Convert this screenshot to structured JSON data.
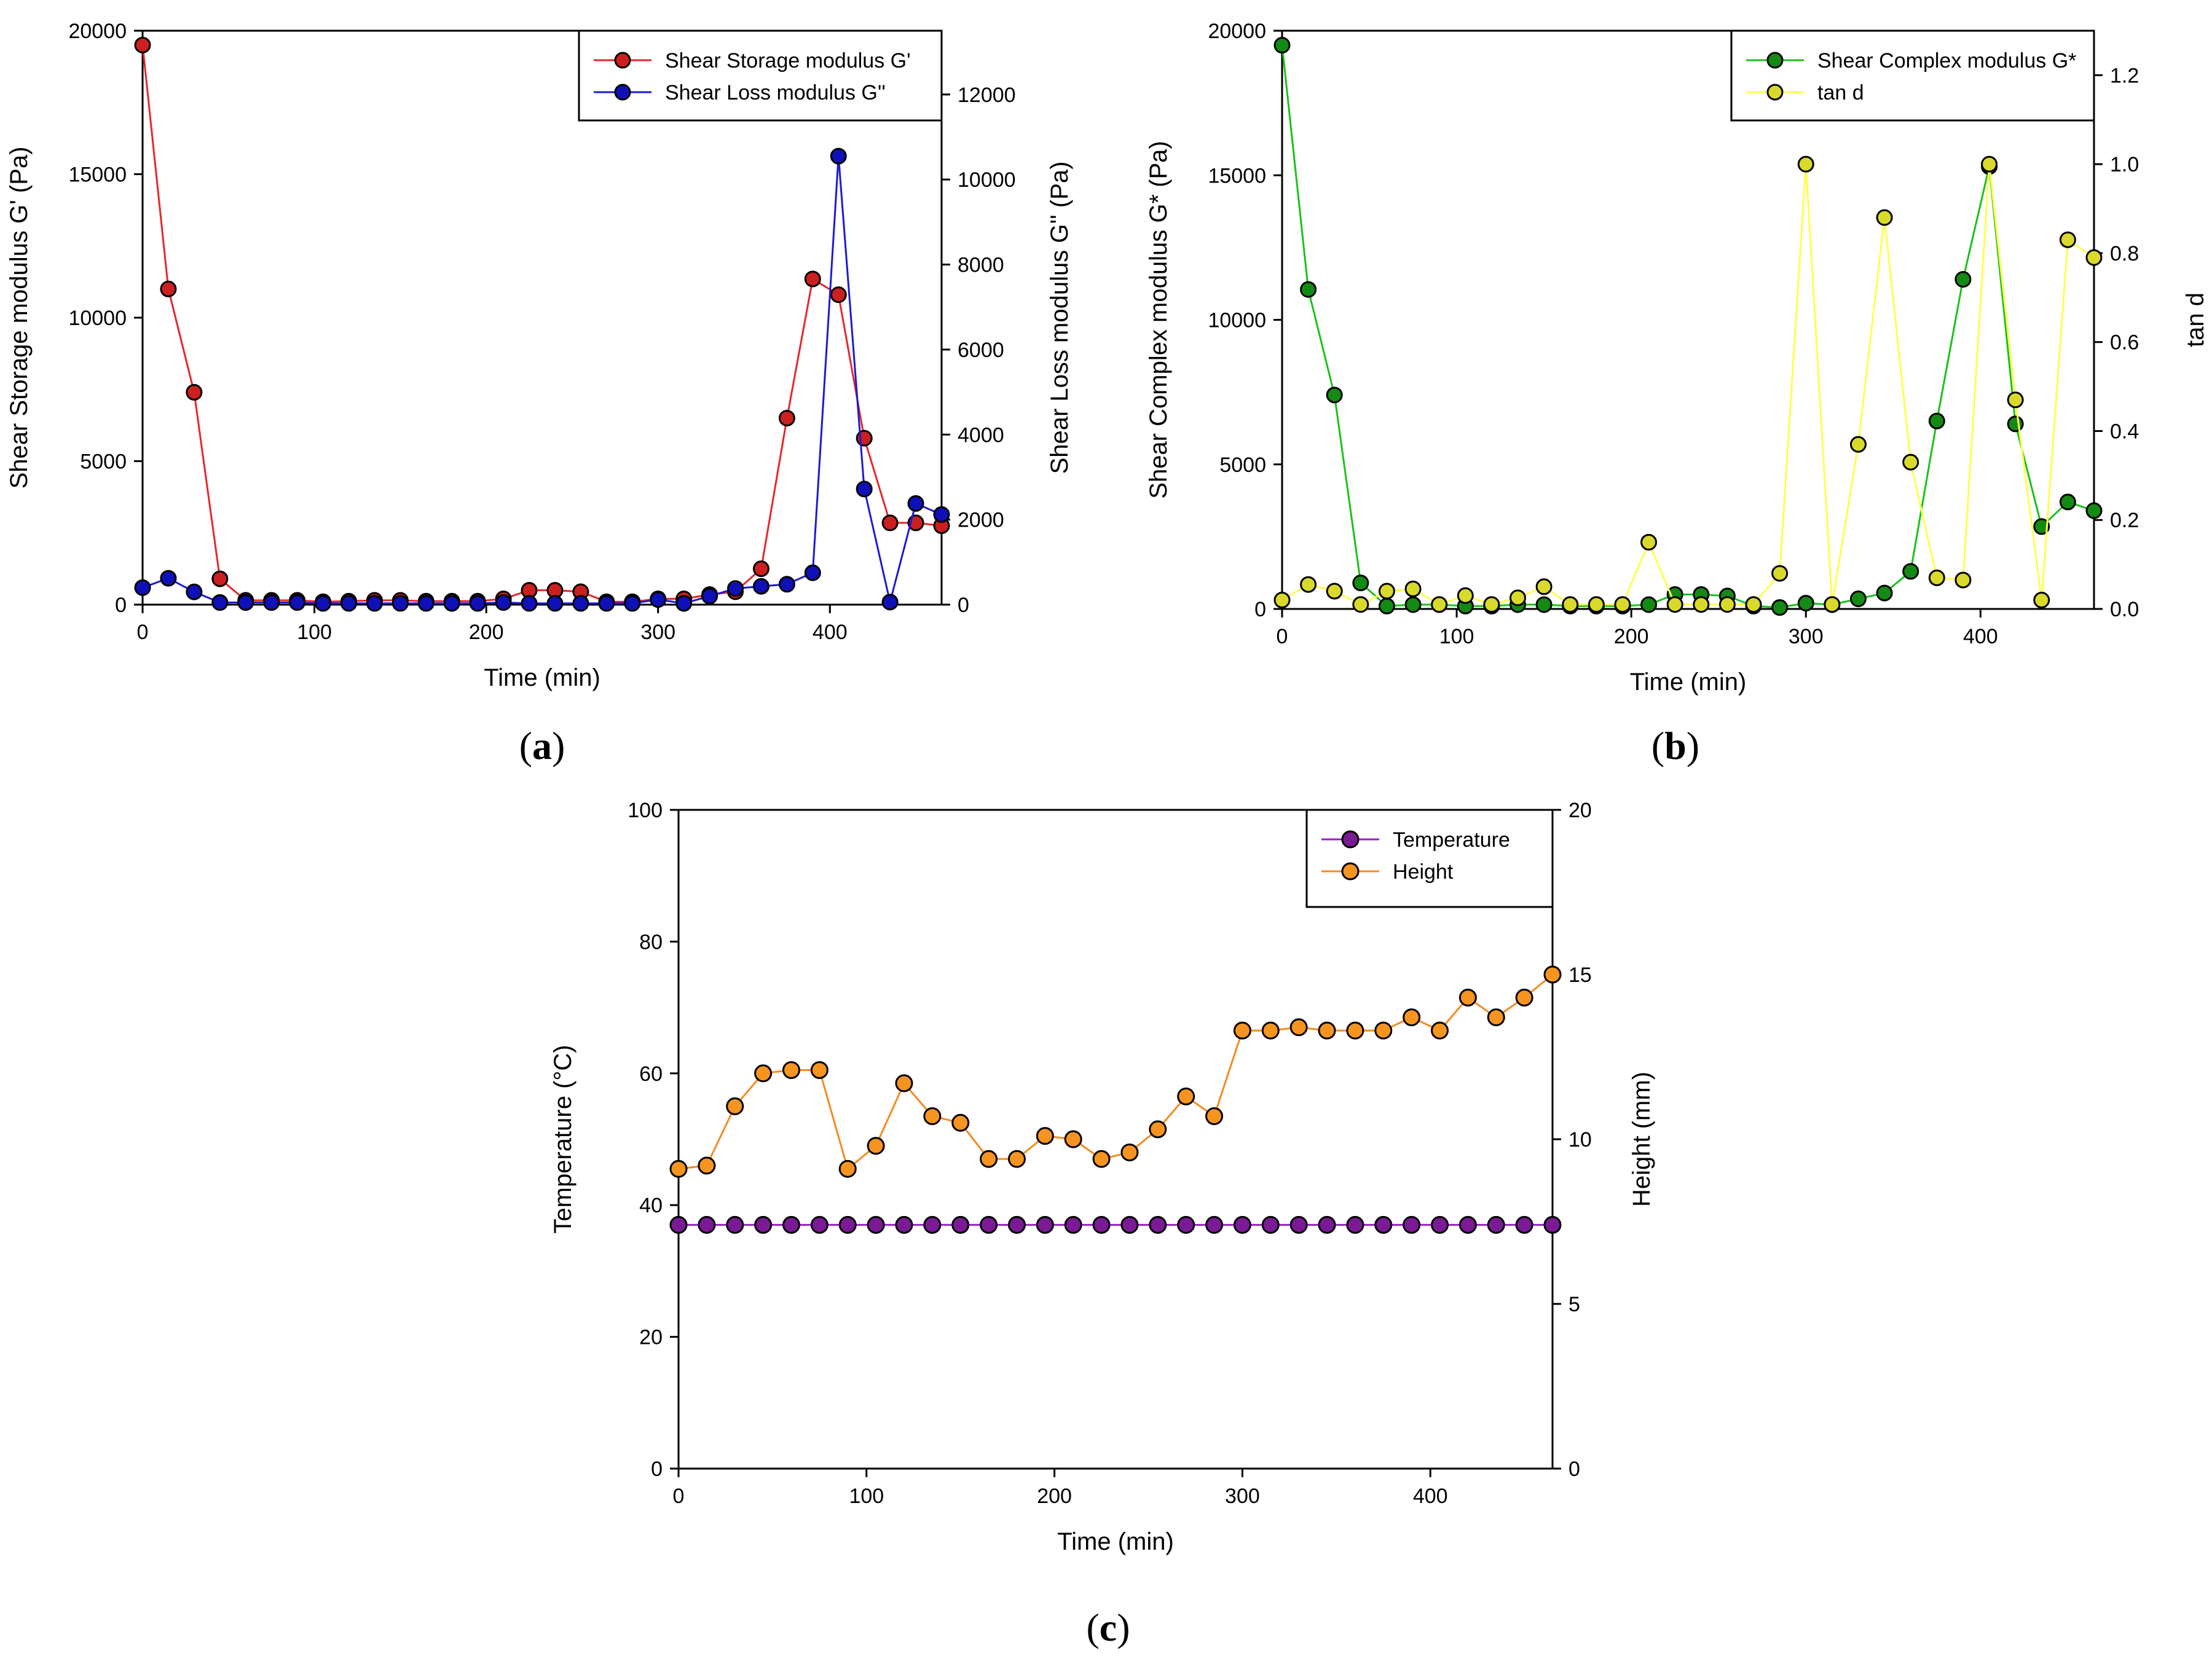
{
  "chart_data": [
    {
      "id": "a",
      "type": "line",
      "panel_label": "a",
      "xlabel": "Time (min)",
      "ylabel": "Shear Storage modulus G' (Pa)",
      "y2label": "Shear Loss modulus G'' (Pa)",
      "xlim": [
        0,
        465
      ],
      "ylim": [
        0,
        20000
      ],
      "y2lim": [
        0,
        13500
      ],
      "xticks": [
        0,
        100,
        200,
        300,
        400
      ],
      "yticks": [
        0,
        5000,
        10000,
        15000,
        20000
      ],
      "y2ticks": [
        0,
        2000,
        4000,
        6000,
        8000,
        10000,
        12000
      ],
      "legend_position": "top-right",
      "series": [
        {
          "name": "Shear Storage modulus G'",
          "axis": "y",
          "line_color": "#e8262b",
          "marker_color": "#cc1f1f",
          "x": [
            0,
            15,
            30,
            45,
            60,
            75,
            90,
            105,
            120,
            135,
            150,
            165,
            180,
            195,
            210,
            225,
            240,
            255,
            270,
            285,
            300,
            315,
            330,
            345,
            360,
            375,
            390,
            405,
            420,
            435,
            450,
            465
          ],
          "values": [
            19500,
            11000,
            7400,
            900,
            150,
            150,
            150,
            100,
            120,
            150,
            150,
            120,
            120,
            120,
            200,
            500,
            500,
            450,
            100,
            100,
            200,
            200,
            350,
            450,
            1250,
            6500,
            11350,
            10800,
            5800,
            2850,
            2850,
            2750
          ]
        },
        {
          "name": "Shear Loss modulus G''",
          "axis": "y2",
          "line_color": "#1a1ad6",
          "marker_color": "#1010b8",
          "x": [
            0,
            15,
            30,
            45,
            60,
            75,
            90,
            105,
            120,
            135,
            150,
            165,
            180,
            195,
            210,
            225,
            240,
            255,
            270,
            285,
            300,
            315,
            330,
            345,
            360,
            375,
            390,
            405,
            420,
            435,
            450,
            465
          ],
          "values": [
            400,
            620,
            300,
            50,
            50,
            50,
            50,
            30,
            30,
            30,
            30,
            30,
            30,
            30,
            50,
            30,
            30,
            30,
            30,
            30,
            120,
            30,
            200,
            380,
            430,
            480,
            750,
            10550,
            2720,
            60,
            2380,
            2120
          ]
        }
      ]
    },
    {
      "id": "b",
      "type": "line",
      "panel_label": "b",
      "xlabel": "Time (min)",
      "ylabel": "Shear Complex modulus G* (Pa)",
      "y2label": "tan d",
      "xlim": [
        0,
        465
      ],
      "ylim": [
        0,
        20000
      ],
      "y2lim": [
        0,
        1.3
      ],
      "xticks": [
        0,
        100,
        200,
        300,
        400
      ],
      "yticks": [
        0,
        5000,
        10000,
        15000,
        20000
      ],
      "y2ticks": [
        0.0,
        0.2,
        0.4,
        0.6,
        0.8,
        1.0,
        1.2
      ],
      "y2tick_labels": [
        "0.0",
        "0.2",
        "0.4",
        "0.6",
        "0.8",
        "1.0",
        "1.2"
      ],
      "legend_position": "top-right",
      "series": [
        {
          "name": "Shear Complex modulus G*",
          "axis": "y",
          "line_color": "#19c219",
          "marker_color": "#138a13",
          "x": [
            0,
            15,
            30,
            45,
            60,
            75,
            90,
            105,
            120,
            135,
            150,
            165,
            180,
            195,
            210,
            225,
            240,
            255,
            270,
            285,
            300,
            315,
            330,
            345,
            360,
            375,
            390,
            405,
            420,
            435,
            450,
            465
          ],
          "values": [
            19500,
            11050,
            7400,
            900,
            100,
            150,
            150,
            100,
            100,
            150,
            150,
            100,
            100,
            100,
            150,
            500,
            500,
            450,
            100,
            50,
            200,
            150,
            350,
            550,
            1300,
            6500,
            11400,
            15300,
            6400,
            2850,
            3700,
            3400
          ]
        },
        {
          "name": "tan d",
          "axis": "y2",
          "line_color": "#ffff4d",
          "marker_color": "#d9d92b",
          "x": [
            0,
            15,
            30,
            45,
            60,
            75,
            90,
            105,
            120,
            135,
            150,
            165,
            180,
            195,
            210,
            225,
            240,
            255,
            270,
            285,
            300,
            315,
            330,
            345,
            360,
            375,
            390,
            405,
            420,
            435,
            450,
            465
          ],
          "values": [
            0.02,
            0.055,
            0.04,
            0.01,
            0.04,
            0.045,
            0.01,
            0.03,
            0.01,
            0.025,
            0.05,
            0.01,
            0.01,
            0.01,
            0.15,
            0.01,
            0.01,
            0.01,
            0.01,
            0.08,
            1.0,
            0.01,
            0.37,
            0.88,
            0.33,
            0.07,
            0.065,
            1.0,
            0.47,
            0.02,
            0.83,
            0.79
          ]
        }
      ]
    },
    {
      "id": "c",
      "type": "line",
      "panel_label": "c",
      "xlabel": "Time (min)",
      "ylabel": "Temperature (°C)",
      "y2label": "Height (mm)",
      "xlim": [
        0,
        465
      ],
      "ylim": [
        0,
        100
      ],
      "y2lim": [
        0,
        20
      ],
      "xticks": [
        0,
        100,
        200,
        300,
        400
      ],
      "yticks": [
        0,
        20,
        40,
        60,
        80,
        100
      ],
      "y2ticks": [
        0,
        5,
        10,
        15,
        20
      ],
      "legend_position": "top-right",
      "series": [
        {
          "name": "Temperature",
          "axis": "y",
          "line_color": "#9a1fc7",
          "marker_color": "#7a1a94",
          "x": [
            0,
            15,
            30,
            45,
            60,
            75,
            90,
            105,
            120,
            135,
            150,
            165,
            180,
            195,
            210,
            225,
            240,
            255,
            270,
            285,
            300,
            315,
            330,
            345,
            360,
            375,
            390,
            405,
            420,
            435,
            450,
            465
          ],
          "values": [
            37,
            37,
            37,
            37,
            37,
            37,
            37,
            37,
            37,
            37,
            37,
            37,
            37,
            37,
            37,
            37,
            37,
            37,
            37,
            37,
            37,
            37,
            37,
            37,
            37,
            37,
            37,
            37,
            37,
            37,
            37,
            37
          ]
        },
        {
          "name": "Height",
          "axis": "y2",
          "line_color": "#f58a1f",
          "marker_color": "#f5941f",
          "x": [
            0,
            15,
            30,
            45,
            60,
            75,
            90,
            105,
            120,
            135,
            150,
            165,
            180,
            195,
            210,
            225,
            240,
            255,
            270,
            285,
            300,
            315,
            330,
            345,
            360,
            375,
            390,
            405,
            420,
            435,
            450,
            465
          ],
          "values": [
            9.1,
            9.2,
            11.0,
            12.0,
            12.1,
            12.1,
            9.1,
            9.8,
            11.7,
            10.7,
            10.5,
            9.4,
            9.4,
            10.1,
            10.0,
            9.4,
            9.6,
            10.3,
            11.3,
            10.7,
            13.3,
            13.3,
            13.4,
            13.3,
            13.3,
            13.3,
            13.7,
            13.3,
            14.3,
            13.7,
            14.3,
            15.0
          ]
        }
      ]
    }
  ]
}
